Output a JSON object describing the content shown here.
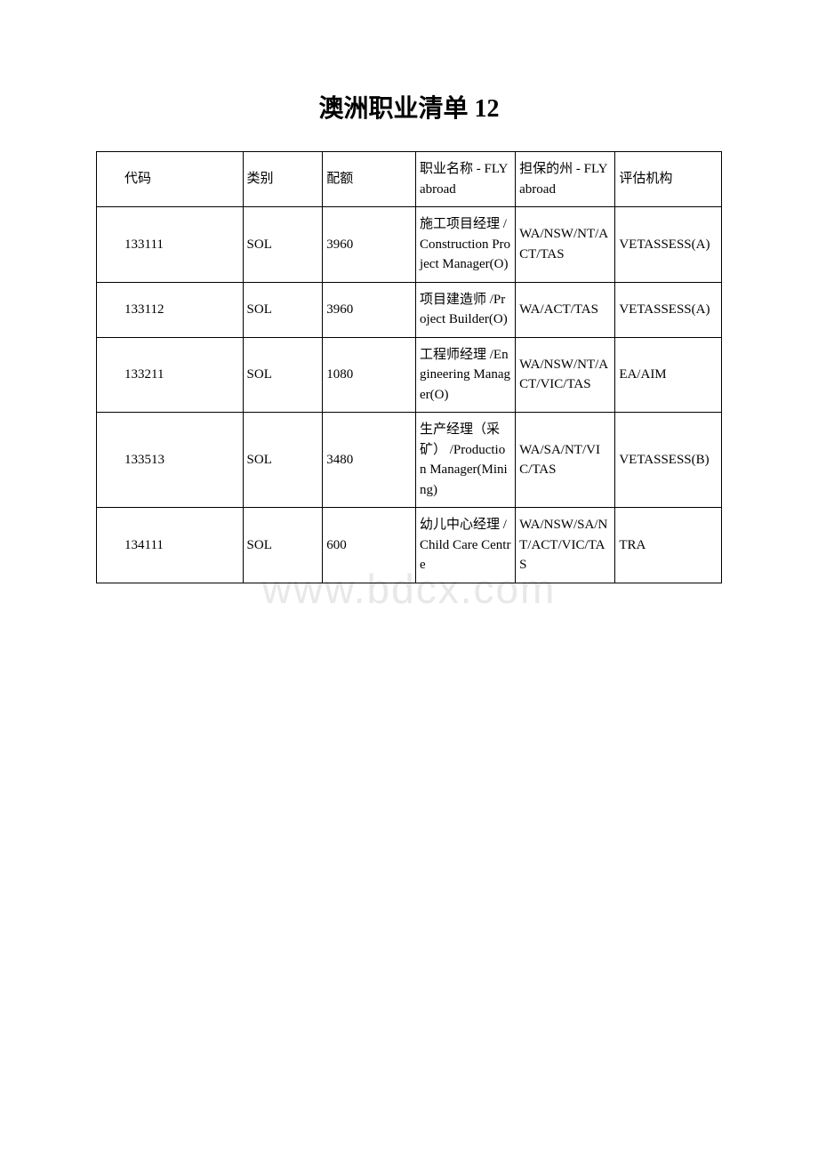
{
  "title": "澳洲职业清单 12",
  "watermark": "www.bdcx.com",
  "columns": {
    "code": "代码",
    "category": "类别",
    "quota": "配额",
    "occupation": "职业名称 - FLYabroad",
    "state": "担保的州 - FLYabroad",
    "agency": "评估机构"
  },
  "rows": [
    {
      "code": "133111",
      "category": "SOL",
      "quota": "3960",
      "occupation_cn": "施工项目经理",
      "occupation_en": "/Construction Project Manager(O)",
      "state": "WA/NSW/NT/ACT/TAS",
      "agency": "VETASSESS(A)"
    },
    {
      "code": "133112",
      "category": "SOL",
      "quota": "3960",
      "occupation_cn": "项目建造师",
      "occupation_en": "/Project Builder(O)",
      "state": "WA/ACT/TAS",
      "agency": "VETASSESS(A)"
    },
    {
      "code": "133211",
      "category": "SOL",
      "quota": "1080",
      "occupation_cn": "工程师经理",
      "occupation_en": "/Engineering Manager(O)",
      "state": "WA/NSW/NT/ACT/VIC/TAS",
      "agency": "EA/AIM"
    },
    {
      "code": "133513",
      "category": "SOL",
      "quota": "3480",
      "occupation_cn": "生产经理（采矿）",
      "occupation_en": "/Production Manager(Mining)",
      "state": "WA/SA/NT/VIC/TAS",
      "agency": "VETASSESS(B)"
    },
    {
      "code": "134111",
      "category": "SOL",
      "quota": "600",
      "occupation_cn": "幼儿中心经理",
      "occupation_en": "/Child Care Centre",
      "state": "WA/NSW/SA/NT/ACT/VIC/TAS",
      "agency": "TRA"
    }
  ]
}
